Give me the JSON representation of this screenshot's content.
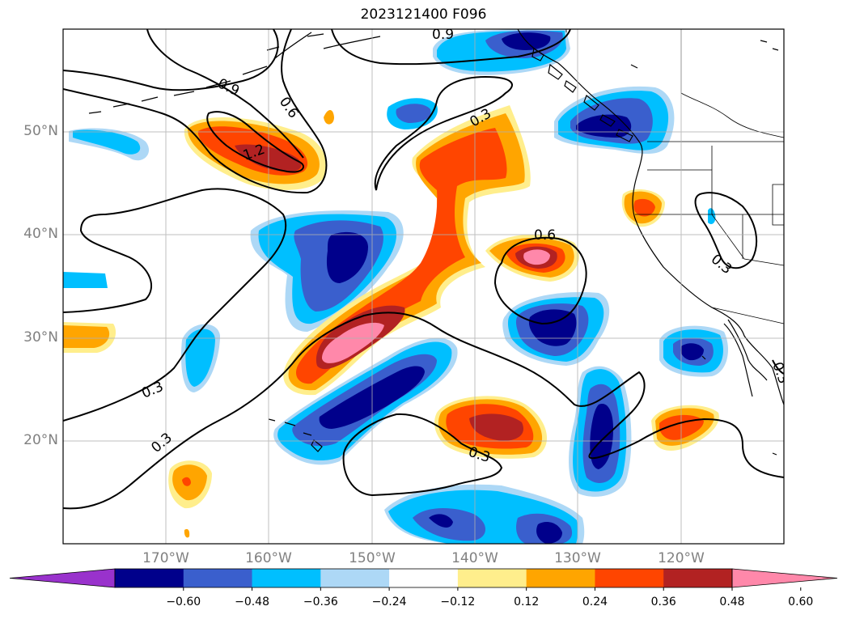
{
  "title": "2023121400 F096",
  "lat_labels": [
    "50°N",
    "40°N",
    "30°N",
    "20°N"
  ],
  "lon_labels": [
    "170°W",
    "160°W",
    "150°W",
    "140°W",
    "130°W",
    "120°W"
  ],
  "colorbar": {
    "ticks": [
      "−0.60",
      "−0.48",
      "−0.36",
      "−0.24",
      "−0.12",
      "0.12",
      "0.24",
      "0.36",
      "0.48",
      "0.60"
    ],
    "colors": [
      "#9932cc",
      "#00008b",
      "#3a5fcd",
      "#00bfff",
      "#add8f6",
      "#ffffff",
      "#ffee8c",
      "#ffa500",
      "#ff4500",
      "#b22222",
      "#ff88aa"
    ]
  },
  "contour_labels": [
    "0.9",
    "0.9",
    "0.6",
    "1.2",
    "0.3",
    "0.6",
    "0.3",
    "0.3",
    "0.3",
    "0.3",
    "0.3"
  ],
  "map": {
    "lat_range": [
      10,
      60
    ],
    "lon_range": [
      -180,
      -110
    ],
    "gridlines": true
  }
}
